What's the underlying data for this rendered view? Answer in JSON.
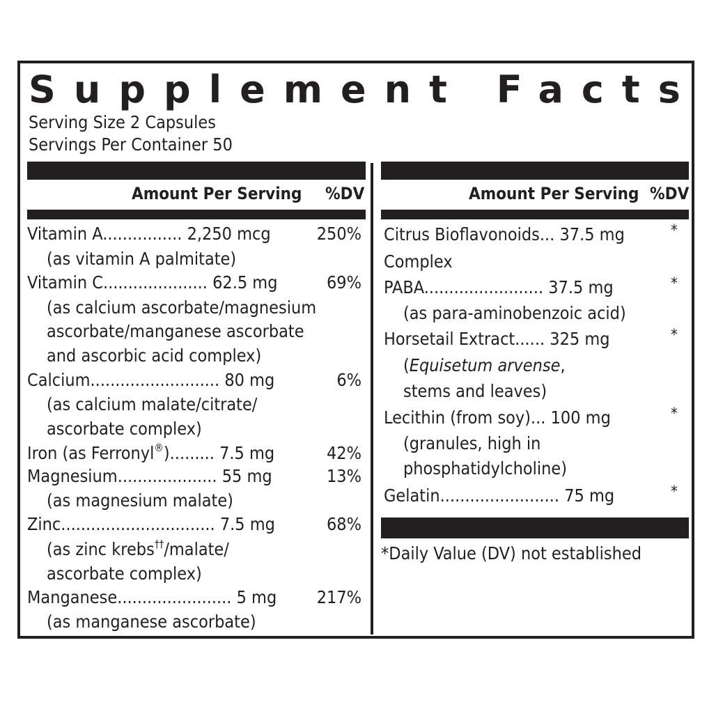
{
  "title": "Supplement Facts",
  "serving_size": "Serving Size 2 Capsules",
  "servings_per_container": "Servings Per Container 50",
  "left_head": {
    "amount": "Amount Per Serving",
    "dv": "%DV"
  },
  "right_head": {
    "amount": "Amount Per Serving",
    "dv": "%DV"
  },
  "left": [
    {
      "name": "Vitamin A",
      "dots": "................",
      "amount": "2,250 mcg",
      "dv": "250%",
      "note": [
        "(as vitamin A palmitate)"
      ]
    },
    {
      "name": "Vitamin C",
      "dots": ".....................",
      "amount": "62.5 mg",
      "dv": "69%",
      "note": [
        "(as calcium ascorbate/magnesium",
        "ascorbate/manganese ascorbate",
        "and ascorbic acid complex)"
      ]
    },
    {
      "name": "Calcium",
      "dots": "..........................",
      "amount": "80 mg",
      "dv": "6%",
      "note": [
        "(as calcium malate/citrate/",
        "ascorbate complex)"
      ]
    },
    {
      "name": "Iron (as Ferronyl",
      "reg": "®",
      "name_tail": ")",
      "dots": ".........",
      "amount": "7.5 mg",
      "dv": "42%",
      "note": []
    },
    {
      "name": "Magnesium",
      "dots": "....................",
      "amount": "55 mg",
      "dv": "13%",
      "note": [
        "(as magnesium malate)"
      ]
    },
    {
      "name": "Zinc",
      "dots": "...............................",
      "amount": "7.5 mg",
      "dv": "68%",
      "note": [
        "(as zinc krebs",
        "/malate/",
        "ascorbate complex)"
      ],
      "note_sup": "††"
    },
    {
      "name": "Manganese",
      "dots": ".......................",
      "amount": "5 mg",
      "dv": "217%",
      "note": [
        "(as manganese ascorbate)"
      ]
    }
  ],
  "right": [
    {
      "name": "Citrus Bioflavonoids",
      "dots": "...",
      "amount": "37.5 mg",
      "dv": "*",
      "note": [
        "Complex"
      ]
    },
    {
      "name": "PABA",
      "dots": "........................",
      "amount": "37.5 mg",
      "dv": "*",
      "note": [
        "(as para-aminobenzoic acid)"
      ]
    },
    {
      "name": "Horsetail Extract",
      "dots": "......",
      "amount": "325 mg",
      "dv": "*",
      "note_italic": "Equisetum arvense",
      "note": [
        "(",
        ",",
        "stems and leaves)"
      ]
    },
    {
      "name": "Lecithin (from soy)",
      "dots": "...",
      "amount": "100 mg",
      "dv": "*",
      "note": [
        "(granules, high in",
        "phosphatidylcholine)"
      ]
    },
    {
      "name": "Gelatin",
      "dots": "........................",
      "amount": "75 mg",
      "dv": "*",
      "note": []
    }
  ],
  "footnote": "*Daily Value (DV) not established"
}
